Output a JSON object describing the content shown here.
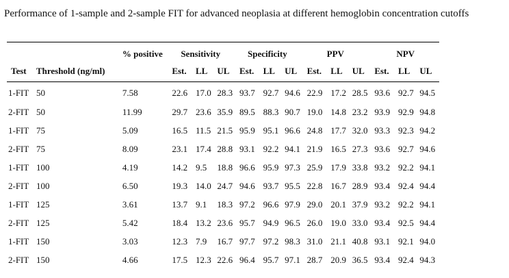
{
  "caption": "Performance of 1-sample and 2-sample FIT for advanced neoplasia at different hemoglobin concentration cutoffs",
  "header": {
    "test": "Test",
    "threshold": "Threshold (ng/ml)",
    "pct_positive": "% positive",
    "sensitivity": "Sensitivity",
    "specificity": "Specificity",
    "ppv": "PPV",
    "npv": "NPV",
    "est": "Est.",
    "ll": "LL",
    "ul": "UL"
  },
  "rows": [
    [
      "1-FIT",
      "50",
      "7.58",
      "22.6",
      "17.0",
      "28.3",
      "93.7",
      "92.7",
      "94.6",
      "22.9",
      "17.2",
      "28.5",
      "93.6",
      "92.7",
      "94.5"
    ],
    [
      "2-FIT",
      "50",
      "11.99",
      "29.7",
      "23.6",
      "35.9",
      "89.5",
      "88.3",
      "90.7",
      "19.0",
      "14.8",
      "23.2",
      "93.9",
      "92.9",
      "94.8"
    ],
    [
      "1-FIT",
      "75",
      "5.09",
      "16.5",
      "11.5",
      "21.5",
      "95.9",
      "95.1",
      "96.6",
      "24.8",
      "17.7",
      "32.0",
      "93.3",
      "92.3",
      "94.2"
    ],
    [
      "2-FIT",
      "75",
      "8.09",
      "23.1",
      "17.4",
      "28.8",
      "93.1",
      "92.2",
      "94.1",
      "21.9",
      "16.5",
      "27.3",
      "93.6",
      "92.7",
      "94.6"
    ],
    [
      "1-FIT",
      "100",
      "4.19",
      "14.2",
      "9.5",
      "18.8",
      "96.6",
      "95.9",
      "97.3",
      "25.9",
      "17.9",
      "33.8",
      "93.2",
      "92.2",
      "94.1"
    ],
    [
      "2-FIT",
      "100",
      "6.50",
      "19.3",
      "14.0",
      "24.7",
      "94.6",
      "93.7",
      "95.5",
      "22.8",
      "16.7",
      "28.9",
      "93.4",
      "92.4",
      "94.4"
    ],
    [
      "1-FIT",
      "125",
      "3.61",
      "13.7",
      "9.1",
      "18.3",
      "97.2",
      "96.6",
      "97.9",
      "29.0",
      "20.1",
      "37.9",
      "93.2",
      "92.2",
      "94.1"
    ],
    [
      "2-FIT",
      "125",
      "5.42",
      "18.4",
      "13.2",
      "23.6",
      "95.7",
      "94.9",
      "96.5",
      "26.0",
      "19.0",
      "33.0",
      "93.4",
      "92.5",
      "94.4"
    ],
    [
      "1-FIT",
      "150",
      "3.03",
      "12.3",
      "7.9",
      "16.7",
      "97.7",
      "97.2",
      "98.3",
      "31.0",
      "21.1",
      "40.8",
      "93.1",
      "92.1",
      "94.0"
    ],
    [
      "2-FIT",
      "150",
      "4.66",
      "17.5",
      "12.3",
      "22.6",
      "96.4",
      "95.7",
      "97.1",
      "28.7",
      "20.9",
      "36.5",
      "93.4",
      "92.4",
      "94.3"
    ]
  ]
}
